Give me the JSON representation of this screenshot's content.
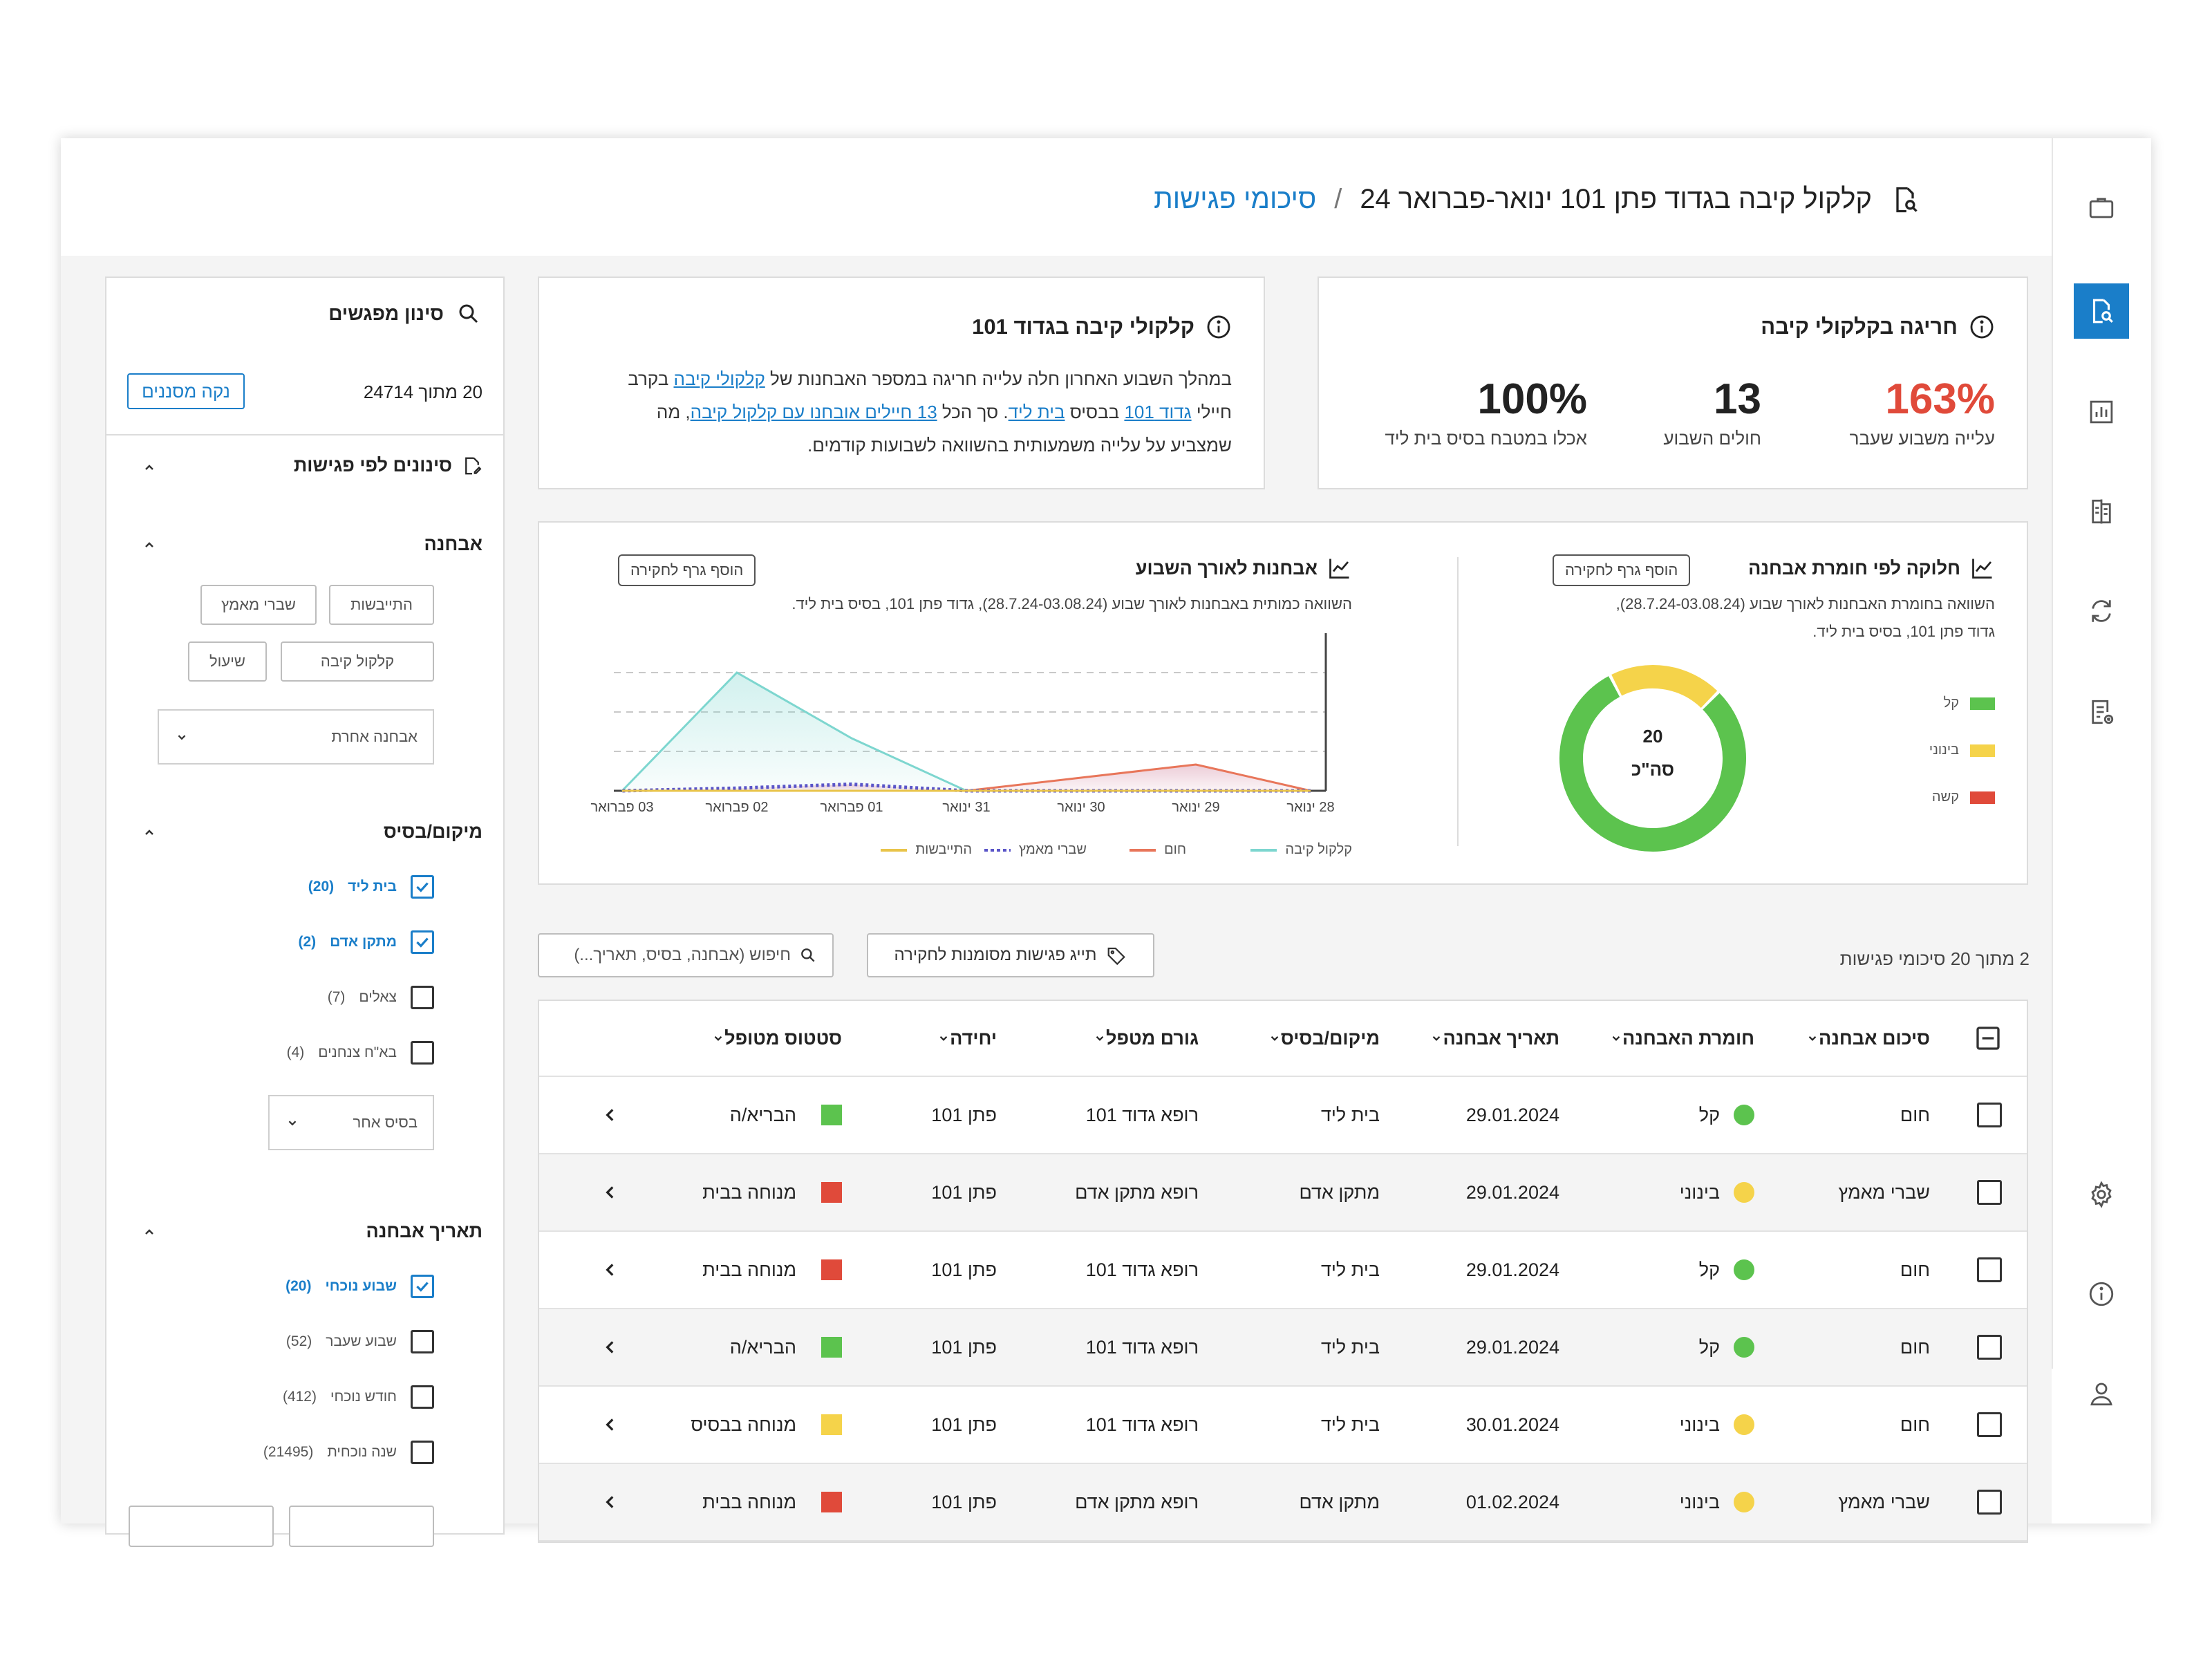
{
  "header": {
    "title": "קלקול קיבה בגדוד פתן 101 ינואר-פברואר 24",
    "separator": "/",
    "crumb": "סיכומי פגישות"
  },
  "kpi_card": {
    "title": "חריגה בקלקולי קיבה",
    "items": [
      {
        "value": "163%",
        "label": "עלייה משבוע שעבר"
      },
      {
        "value": "13",
        "label": "חולים השבוע"
      },
      {
        "value": "100%",
        "label": "אכלו במטבח בסיס בית ליד"
      }
    ]
  },
  "insight_card": {
    "title": "קלקולי קיבה בגדוד 101",
    "line1_a": "במהלך השבוע האחרון חלה עלייה חריגה במספר האבחנות של ",
    "line1_link": "קלקולי קיבה",
    "line1_b": " בקרב",
    "line2_a": "חיילי ",
    "line2_link1": "גדוד 101",
    "line2_b": " בבסיס ",
    "line2_link2": "בית ליד",
    "line2_c": ". סך הכל ",
    "line2_link3": "13 חיילים אובחנו עם קלקול קיבה",
    "line2_d": ", מה",
    "line3": "שמצביע על עלייה משמעותית בהשוואה לשבועות קודמים."
  },
  "filter_panel": {
    "title": "סינון מפגשים",
    "count": "20 מתוך 24714",
    "clear_label": "נקה מסננים",
    "section_title": "סינונים לפי פגישות",
    "diagnosis": {
      "title": "אבחנה",
      "tags": [
        "התייבשות",
        "שברי מאמץ",
        "קלקול קיבה",
        "שיעול"
      ],
      "select": "אבחנה אחרת"
    },
    "location": {
      "title": "מיקום/בסיס",
      "options": [
        {
          "label": "בית ליד",
          "count": "(20)",
          "checked": true
        },
        {
          "label": "מתקן אדם",
          "count": "(2)",
          "checked": true
        },
        {
          "label": "צאלים",
          "count": "(7)",
          "checked": false
        },
        {
          "label": "בא\"ח צנחנים",
          "count": "(4)",
          "checked": false
        }
      ],
      "select": "בסיס אחר"
    },
    "date": {
      "title": "תאריך אבחנה",
      "options": [
        {
          "label": "שבוע נוכחי",
          "count": "(20)",
          "checked": true
        },
        {
          "label": "שבוע שעבר",
          "count": "(52)",
          "checked": false
        },
        {
          "label": "חודש נוכחי",
          "count": "(412)",
          "checked": false
        },
        {
          "label": "שנה נוכחית",
          "count": "(21495)",
          "checked": false
        }
      ]
    }
  },
  "charts": {
    "severity": {
      "title": "חלוקה לפי חומרת אבחנה",
      "subtitle_1": "השוואה בחומרת האבחנות לאורך שבוע (28.7.24-03.08.24),",
      "subtitle_2": "גדוד פתן 101, בסיס בית ליד.",
      "add_label": "הוסף גרף לחקירה",
      "center_value": "20",
      "center_label": "סה\"כ",
      "legend": [
        {
          "name": "קל",
          "color": "#5cc34e"
        },
        {
          "name": "בינוני",
          "color": "#f5d34a"
        },
        {
          "name": "קשה",
          "color": "#e04a3a"
        }
      ]
    },
    "weekly": {
      "title": "אבחנות לאורך השבוע",
      "subtitle": "השוואה כמותית באבחנות לאורך שבוע (28.7.24-03.08.24), גדוד פתן 101, בסיס בית ליד.",
      "add_label": "הוסף גרף לחקירה",
      "legend": [
        {
          "name": "קלקול קיבה",
          "color": "#7dd6cf"
        },
        {
          "name": "חום",
          "color": "#e8765a"
        },
        {
          "name": "שברי מאמץ",
          "color": "#5a55c8"
        },
        {
          "name": "התייבשות",
          "color": "#e9c44a"
        }
      ]
    }
  },
  "chart_data": [
    {
      "type": "pie",
      "title": "חלוקה לפי חומרת אבחנה",
      "categories": [
        "קל",
        "בינוני",
        "קשה"
      ],
      "values": [
        16,
        4,
        0
      ],
      "total": "20"
    },
    {
      "type": "area",
      "title": "אבחנות לאורך השבוע",
      "categories": [
        "28 ינואר",
        "29 ינואר",
        "30 ינואר",
        "31 ינואר",
        "01 פברואר",
        "02 פברואר",
        "03 פברואר"
      ],
      "ylim": [
        0,
        12
      ],
      "series": [
        {
          "name": "קלקול קיבה",
          "values": [
            0,
            0,
            0,
            0,
            4,
            9,
            0
          ]
        },
        {
          "name": "חום",
          "values": [
            0,
            2,
            1,
            0,
            0,
            0,
            0
          ]
        },
        {
          "name": "שברי מאמץ",
          "values": [
            0,
            0,
            0,
            0,
            0.5,
            0.2,
            0
          ]
        },
        {
          "name": "התייבשות",
          "values": [
            0,
            0,
            0,
            0,
            0,
            0,
            0
          ]
        }
      ]
    }
  ],
  "toolbar": {
    "count": "2 מתוך 20 סיכומי פגישות",
    "tag_button": "תייג פגישות מסומנות לחקירה",
    "search_placeholder": "חיפוש (אבחנה, בסיס, תאריך...)"
  },
  "table": {
    "columns": [
      "סיכום אבחנה",
      "חומרת האבחנה",
      "תאריך אבחנה",
      "מיקום/בסיס",
      "גורם מטפל",
      "יחידה",
      "סטטוס מטופל"
    ],
    "rows": [
      {
        "diagnosis": "חום",
        "severity": "קל",
        "severity_color": "#5cc34e",
        "date": "29.01.2024",
        "base": "בית ליד",
        "handler": "רופא גדוד 101",
        "unit": "פתן 101",
        "status": "הבריא/ה",
        "status_color": "#5cc34e"
      },
      {
        "diagnosis": "שברי מאמץ",
        "severity": "בינוני",
        "severity_color": "#f5d34a",
        "date": "29.01.2024",
        "base": "מתקן אדם",
        "handler": "רופא מתקן אדם",
        "unit": "פתן 101",
        "status": "מנוחה בבית",
        "status_color": "#e04a3a"
      },
      {
        "diagnosis": "חום",
        "severity": "קל",
        "severity_color": "#5cc34e",
        "date": "29.01.2024",
        "base": "בית ליד",
        "handler": "רופא גדוד 101",
        "unit": "פתן 101",
        "status": "מנוחה בבית",
        "status_color": "#e04a3a"
      },
      {
        "diagnosis": "חום",
        "severity": "קל",
        "severity_color": "#5cc34e",
        "date": "29.01.2024",
        "base": "בית ליד",
        "handler": "רופא גדוד 101",
        "unit": "פתן 101",
        "status": "הבריא/ה",
        "status_color": "#5cc34e"
      },
      {
        "diagnosis": "חום",
        "severity": "בינוני",
        "severity_color": "#f5d34a",
        "date": "30.01.2024",
        "base": "בית ליד",
        "handler": "רופא גדוד 101",
        "unit": "פתן 101",
        "status": "מנוחה בבסיס",
        "status_color": "#f5d34a"
      },
      {
        "diagnosis": "שברי מאמץ",
        "severity": "בינוני",
        "severity_color": "#f5d34a",
        "date": "01.02.2024",
        "base": "מתקן אדם",
        "handler": "רופא מתקן אדם",
        "unit": "פתן 101",
        "status": "מנוחה בבית",
        "status_color": "#e04a3a"
      }
    ]
  }
}
